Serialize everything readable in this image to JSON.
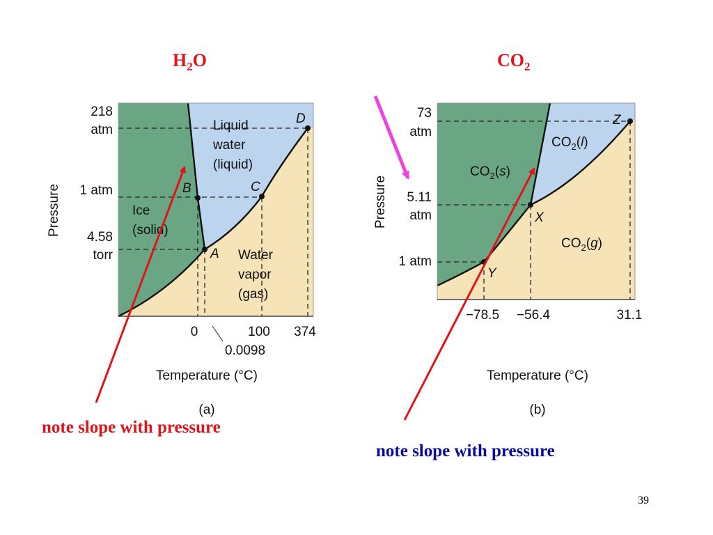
{
  "titles": {
    "h2o_base": "H",
    "h2o_sub": "2",
    "h2o_end": "O",
    "co2_base": "CO",
    "co2_sub": "2"
  },
  "panel_a": {
    "y_ticks": [
      "218",
      "atm",
      "1 atm",
      "4.58",
      "torr"
    ],
    "y_axis": "Pressure",
    "x_ticks": [
      "0",
      "100",
      "374"
    ],
    "triple_temp": "0.0098",
    "x_axis": "Temperature (°C)",
    "caption": "(a)",
    "points": [
      "A",
      "B",
      "C",
      "D"
    ],
    "regions": {
      "liquid": [
        "Liquid",
        "water",
        "(liquid)"
      ],
      "solid": [
        "Ice",
        "(solid)"
      ],
      "gas": [
        "Water",
        "vapor",
        "(gas)"
      ]
    }
  },
  "panel_b": {
    "y_ticks": [
      "73",
      "atm",
      "5.11",
      "atm",
      "1 atm"
    ],
    "y_axis": "Pressure",
    "x_ticks": [
      "−78.5",
      "−56.4",
      "31.1"
    ],
    "x_axis": "Temperature (°C)",
    "caption": "(b)",
    "points": [
      "X",
      "Y",
      "Z"
    ],
    "regions": {
      "solid": {
        "base": "CO",
        "sub": "2",
        "phase": "s"
      },
      "liquid": {
        "base": "CO",
        "sub": "2",
        "phase": "l"
      },
      "gas": {
        "base": "CO",
        "sub": "2",
        "phase": "g"
      }
    }
  },
  "notes": {
    "left": "note slope with pressure",
    "right": "note slope with pressure"
  },
  "page_number": "39",
  "colors": {
    "solid": "#6aa584",
    "liquid": "#bcd4ee",
    "gas": "#f7e3b8",
    "red": "#e0141b",
    "magenta": "#ee44dd",
    "blue": "#0a0a99"
  }
}
